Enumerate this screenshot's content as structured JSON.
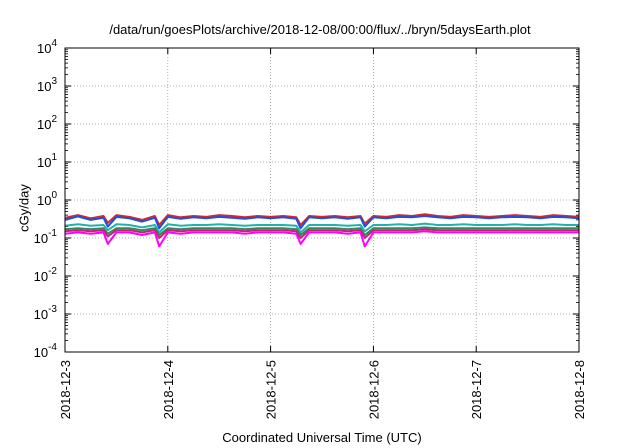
{
  "chart_data": {
    "type": "line",
    "title": "/data/run/goesPlots/archive/2018-12-08/00:00/flux/../bryn/5daysEarth.plot",
    "xlabel": "Coordinated Universal Time (UTC)",
    "ylabel": "cGy/day",
    "y_scale": "log",
    "ylim": [
      0.0001,
      10000
    ],
    "y_ticks": [
      {
        "base": "10",
        "exp": "4"
      },
      {
        "base": "10",
        "exp": "3"
      },
      {
        "base": "10",
        "exp": "2"
      },
      {
        "base": "10",
        "exp": "1"
      },
      {
        "base": "10",
        "exp": "0"
      },
      {
        "base": "10",
        "exp": "-1"
      },
      {
        "base": "10",
        "exp": "-2"
      },
      {
        "base": "10",
        "exp": "-3"
      },
      {
        "base": "10",
        "exp": "-4"
      }
    ],
    "x_ticks": [
      "2018-12-3",
      "2018-12-4",
      "2018-12-5",
      "2018-12-6",
      "2018-12-7",
      "2018-12-8"
    ],
    "grid": true,
    "x_time_hours": [
      0,
      3,
      6,
      9,
      10,
      12,
      15,
      18,
      21,
      22,
      24,
      27,
      30,
      33,
      36,
      39,
      42,
      45,
      48,
      51,
      54,
      55,
      57,
      60,
      63,
      66,
      69,
      70,
      72,
      75,
      78,
      81,
      84,
      87,
      90,
      93,
      96,
      99,
      102,
      105,
      108,
      111,
      114,
      117,
      120
    ],
    "series": [
      {
        "color": "#d62728",
        "values": [
          0.34,
          0.4,
          0.33,
          0.38,
          0.25,
          0.4,
          0.36,
          0.3,
          0.38,
          0.22,
          0.4,
          0.35,
          0.38,
          0.36,
          0.4,
          0.38,
          0.35,
          0.38,
          0.36,
          0.38,
          0.35,
          0.22,
          0.38,
          0.36,
          0.38,
          0.35,
          0.38,
          0.24,
          0.38,
          0.36,
          0.4,
          0.38,
          0.42,
          0.38,
          0.36,
          0.4,
          0.38,
          0.36,
          0.38,
          0.4,
          0.38,
          0.36,
          0.4,
          0.38,
          0.36
        ]
      },
      {
        "color": "#1f4fe0",
        "values": [
          0.3,
          0.37,
          0.3,
          0.34,
          0.2,
          0.36,
          0.33,
          0.27,
          0.34,
          0.18,
          0.36,
          0.32,
          0.35,
          0.33,
          0.36,
          0.34,
          0.32,
          0.35,
          0.33,
          0.35,
          0.32,
          0.18,
          0.35,
          0.33,
          0.35,
          0.32,
          0.35,
          0.2,
          0.35,
          0.33,
          0.36,
          0.35,
          0.38,
          0.35,
          0.33,
          0.36,
          0.35,
          0.33,
          0.35,
          0.36,
          0.35,
          0.33,
          0.36,
          0.35,
          0.33
        ]
      },
      {
        "color": "#20b2aa",
        "values": [
          0.21,
          0.23,
          0.21,
          0.22,
          0.16,
          0.23,
          0.22,
          0.19,
          0.22,
          0.14,
          0.23,
          0.21,
          0.22,
          0.22,
          0.23,
          0.22,
          0.21,
          0.22,
          0.22,
          0.22,
          0.21,
          0.14,
          0.22,
          0.22,
          0.22,
          0.21,
          0.22,
          0.15,
          0.22,
          0.22,
          0.23,
          0.22,
          0.24,
          0.22,
          0.22,
          0.23,
          0.22,
          0.22,
          0.22,
          0.23,
          0.22,
          0.22,
          0.23,
          0.22,
          0.22
        ]
      },
      {
        "color": "#2e8b57",
        "values": [
          0.17,
          0.18,
          0.17,
          0.18,
          0.13,
          0.18,
          0.18,
          0.16,
          0.18,
          0.12,
          0.18,
          0.17,
          0.18,
          0.18,
          0.18,
          0.18,
          0.17,
          0.18,
          0.18,
          0.18,
          0.17,
          0.12,
          0.18,
          0.18,
          0.18,
          0.17,
          0.18,
          0.12,
          0.18,
          0.18,
          0.18,
          0.18,
          0.19,
          0.18,
          0.18,
          0.18,
          0.18,
          0.18,
          0.18,
          0.18,
          0.18,
          0.18,
          0.18,
          0.18,
          0.18
        ]
      },
      {
        "color": "#c8217a",
        "values": [
          0.15,
          0.16,
          0.15,
          0.16,
          0.11,
          0.16,
          0.16,
          0.14,
          0.16,
          0.1,
          0.16,
          0.15,
          0.16,
          0.16,
          0.16,
          0.16,
          0.15,
          0.16,
          0.16,
          0.16,
          0.15,
          0.1,
          0.16,
          0.16,
          0.16,
          0.15,
          0.16,
          0.1,
          0.16,
          0.16,
          0.16,
          0.16,
          0.17,
          0.16,
          0.16,
          0.16,
          0.16,
          0.16,
          0.16,
          0.16,
          0.16,
          0.16,
          0.16,
          0.16,
          0.16
        ]
      },
      {
        "color": "#ff00ff",
        "values": [
          0.13,
          0.14,
          0.13,
          0.14,
          0.07,
          0.14,
          0.14,
          0.12,
          0.14,
          0.06,
          0.14,
          0.13,
          0.14,
          0.14,
          0.14,
          0.14,
          0.13,
          0.14,
          0.14,
          0.14,
          0.13,
          0.07,
          0.14,
          0.14,
          0.14,
          0.13,
          0.14,
          0.06,
          0.14,
          0.14,
          0.14,
          0.14,
          0.15,
          0.14,
          0.14,
          0.14,
          0.14,
          0.14,
          0.14,
          0.14,
          0.14,
          0.14,
          0.14,
          0.14,
          0.14
        ]
      }
    ]
  }
}
